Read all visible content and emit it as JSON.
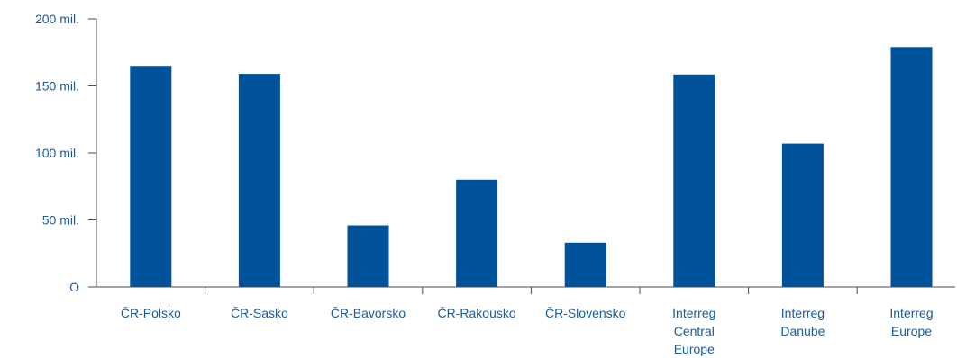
{
  "colors": {
    "bar": "#00529b",
    "text": "#1a5a9a",
    "axis": "#4a4a4a"
  },
  "chart_data": {
    "type": "bar",
    "categories": [
      [
        "ČR-Polsko"
      ],
      [
        "ČR-Sasko"
      ],
      [
        "ČR-Bavorsko"
      ],
      [
        "ČR-Rakousko"
      ],
      [
        "ČR-Slovensko"
      ],
      [
        "Interreg",
        "Central",
        "Europe"
      ],
      [
        "Interreg",
        "Danube"
      ],
      [
        "Interreg",
        "Europe"
      ]
    ],
    "values": [
      165000000,
      159000000,
      46000000,
      80000000,
      33000000,
      158500000,
      107000000,
      179000000
    ],
    "ylim": [
      0,
      200000000
    ],
    "yticks": [
      0,
      50000000,
      100000000,
      150000000,
      200000000
    ],
    "ytick_labels": [
      "O",
      "50 mil.",
      "100 mil.",
      "150 mil.",
      "200 mil."
    ],
    "title": "",
    "xlabel": "",
    "ylabel": "",
    "grid": false,
    "legend": "none"
  }
}
